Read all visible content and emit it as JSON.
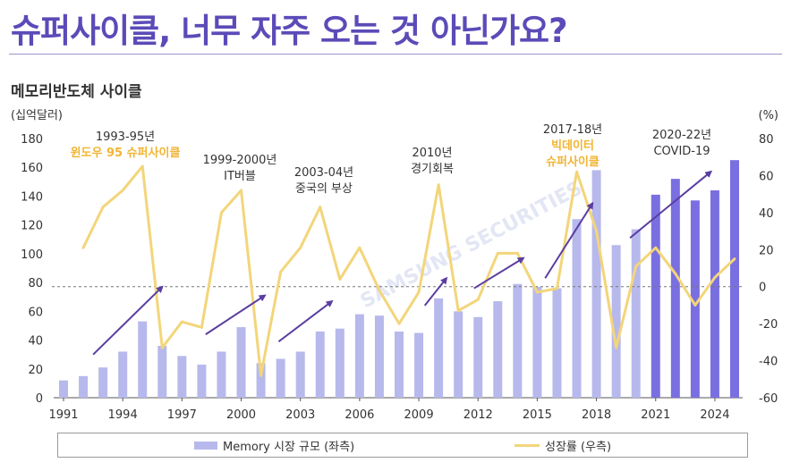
{
  "header": {
    "title": "슈퍼사이클, 너무 자주 오는 것 아닌가요?",
    "subtitle": "메모리반도체 사이클"
  },
  "watermark": "SAMSUNG SECURITIES",
  "colors": {
    "title": "#5b4bb8",
    "bar_light": "#b7b9ec",
    "bar_dark": "#7a6fe0",
    "line": "#f3d57a",
    "arrow": "#5a3ea0",
    "highlight_text": "#f0b534"
  },
  "legend": {
    "bar_label": "Memory 시장 규모 (좌측)",
    "line_label": "성장률 (우측)"
  },
  "chart_data": {
    "type": "bar+line",
    "title": "메모리반도체 사이클",
    "ylabel_left": "(십억달러)",
    "ylabel_right": "(%)",
    "ylim_left": [
      0,
      180
    ],
    "ylim_right": [
      -60,
      80
    ],
    "yticks_left": [
      0,
      20,
      40,
      60,
      80,
      100,
      120,
      140,
      160,
      180
    ],
    "yticks_right": [
      -60,
      -40,
      -20,
      0,
      20,
      40,
      60,
      80
    ],
    "xtick_labels": [
      "1991",
      "1994",
      "1997",
      "2000",
      "2003",
      "2006",
      "2009",
      "2012",
      "2015",
      "2018",
      "2021",
      "2024"
    ],
    "years": [
      1991,
      1992,
      1993,
      1994,
      1995,
      1996,
      1997,
      1998,
      1999,
      2000,
      2001,
      2002,
      2003,
      2004,
      2005,
      2006,
      2007,
      2008,
      2009,
      2010,
      2011,
      2012,
      2013,
      2014,
      2015,
      2016,
      2017,
      2018,
      2019,
      2020,
      2021,
      2022,
      2023,
      2024,
      2025
    ],
    "series": [
      {
        "name": "Memory 시장 규모 (좌측)",
        "type": "bar",
        "axis": "left",
        "values": [
          12,
          15,
          21,
          32,
          53,
          36,
          29,
          23,
          32,
          49,
          24,
          27,
          32,
          46,
          48,
          58,
          57,
          46,
          45,
          69,
          60,
          56,
          67,
          79,
          77,
          76,
          124,
          158,
          106,
          117,
          141,
          152,
          137,
          144,
          165
        ],
        "forecast_from_year": 2021
      },
      {
        "name": "성장률 (우측)",
        "type": "line",
        "axis": "right",
        "values": [
          21,
          43,
          52,
          65,
          -33,
          -19,
          -22,
          40,
          52,
          -48,
          8,
          21,
          43,
          4,
          21,
          -2,
          -20,
          -3,
          55,
          -13,
          -7,
          18,
          18,
          -3,
          -1,
          62,
          30,
          -33,
          11,
          21,
          7,
          -10,
          5,
          15
        ]
      }
    ],
    "reference_line": {
      "axis": "right",
      "value": 0,
      "style": "dashed"
    },
    "annotations": [
      {
        "period": "1993-95년",
        "label": "윈도우 95 슈퍼사이클",
        "highlight": true
      },
      {
        "period": "1999-2000년",
        "label": "IT버블",
        "highlight": false
      },
      {
        "period": "2003-04년",
        "label": "중국의 부상",
        "highlight": false
      },
      {
        "period": "2010년",
        "label": "경기회복",
        "highlight": false
      },
      {
        "period": "2017-18년",
        "label": "빅데이터",
        "label2": "슈퍼사이클",
        "highlight": true
      },
      {
        "period": "2020-22년",
        "label": "COVID-19",
        "highlight": false
      }
    ]
  }
}
